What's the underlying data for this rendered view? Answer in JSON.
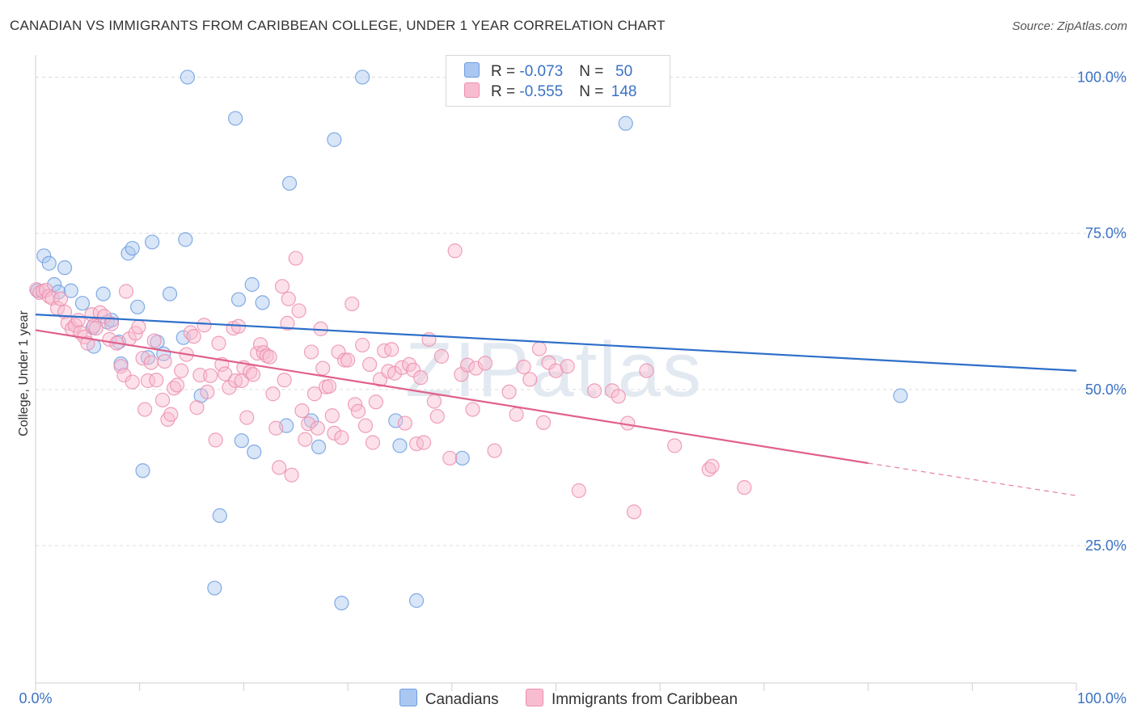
{
  "header": {
    "title": "CANADIAN VS IMMIGRANTS FROM CARIBBEAN COLLEGE, UNDER 1 YEAR CORRELATION CHART",
    "source": "Source: ZipAtlas.com"
  },
  "watermark": "ZIPatlas",
  "legend": {
    "rows": [
      {
        "r_label": "R = ",
        "r_value": "-0.073",
        "n_label": "N = ",
        "n_value": "50",
        "color": "#a9c7f0",
        "border": "#6f9ee0"
      },
      {
        "r_label": "R = ",
        "r_value": "-0.555",
        "n_label": "N = ",
        "n_value": "148",
        "color": "#f8bcd0",
        "border": "#ec8fae"
      }
    ]
  },
  "bottom_legend": [
    {
      "label": "Canadians",
      "color": "#a9c7f0",
      "border": "#6f9ee0"
    },
    {
      "label": "Immigrants from Caribbean",
      "color": "#f8bcd0",
      "border": "#ec8fae"
    }
  ],
  "chart_data": {
    "type": "scatter",
    "ylabel": "College, Under 1 year",
    "x_tick_labels": [
      "0.0%",
      "100.0%"
    ],
    "y_tick_labels": [
      "25.0%",
      "50.0%",
      "75.0%",
      "100.0%"
    ],
    "y_ticks": [
      25,
      50,
      75,
      100
    ],
    "xlim": [
      0,
      100
    ],
    "ylim": [
      3,
      102
    ],
    "grid": true,
    "series": [
      {
        "name": "Canadians",
        "color": "#6f9ee0",
        "fill": "#a9c7f0",
        "trend": {
          "x0": 0,
          "y0": 62.0,
          "x1": 100,
          "y1": 53.0,
          "color": "#2e6fc9"
        },
        "points": [
          [
            0.2,
            65.8
          ],
          [
            0.8,
            71.4
          ],
          [
            1.3,
            70.2
          ],
          [
            1.8,
            66.8
          ],
          [
            2.2,
            65.6
          ],
          [
            2.8,
            69.5
          ],
          [
            3.4,
            65.8
          ],
          [
            4.5,
            63.8
          ],
          [
            5.5,
            59.9
          ],
          [
            5.6,
            56.9
          ],
          [
            6.5,
            65.3
          ],
          [
            6.9,
            60.8
          ],
          [
            7.3,
            61.1
          ],
          [
            8.0,
            57.6
          ],
          [
            8.2,
            54.1
          ],
          [
            8.9,
            71.8
          ],
          [
            9.3,
            72.6
          ],
          [
            9.8,
            63.2
          ],
          [
            10.3,
            37.0
          ],
          [
            10.8,
            55.1
          ],
          [
            11.2,
            73.6
          ],
          [
            11.7,
            57.6
          ],
          [
            12.3,
            55.7
          ],
          [
            12.9,
            65.3
          ],
          [
            14.2,
            58.3
          ],
          [
            14.4,
            74.0
          ],
          [
            14.6,
            100.0
          ],
          [
            15.9,
            49.0
          ],
          [
            17.2,
            18.2
          ],
          [
            17.7,
            29.8
          ],
          [
            19.2,
            93.4
          ],
          [
            19.5,
            64.4
          ],
          [
            19.8,
            41.8
          ],
          [
            20.8,
            66.8
          ],
          [
            21.0,
            40.0
          ],
          [
            21.8,
            63.9
          ],
          [
            24.1,
            44.2
          ],
          [
            24.4,
            83.0
          ],
          [
            26.5,
            45.0
          ],
          [
            27.2,
            40.8
          ],
          [
            28.7,
            90.0
          ],
          [
            29.4,
            15.8
          ],
          [
            31.4,
            100.0
          ],
          [
            34.6,
            45.0
          ],
          [
            35.0,
            41.0
          ],
          [
            36.6,
            16.2
          ],
          [
            41.0,
            39.0
          ],
          [
            47.3,
            100.0
          ],
          [
            56.7,
            92.6
          ],
          [
            83.1,
            49.0
          ]
        ]
      },
      {
        "name": "Immigrants from Caribbean",
        "color": "#ec8fae",
        "fill": "#f8bcd0",
        "trend": {
          "x0": 0,
          "y0": 59.5,
          "x1": 80,
          "y1": 38.2,
          "color": "#e0608c"
        },
        "trend_dashed": {
          "x0": 80,
          "y0": 38.2,
          "x1": 100,
          "y1": 33.0
        },
        "points": [
          [
            0.1,
            66.0
          ],
          [
            0.4,
            65.5
          ],
          [
            0.7,
            65.7
          ],
          [
            1.0,
            65.9
          ],
          [
            1.3,
            64.9
          ],
          [
            1.6,
            64.6
          ],
          [
            2.1,
            63.0
          ],
          [
            2.4,
            64.5
          ],
          [
            2.8,
            62.4
          ],
          [
            3.1,
            60.6
          ],
          [
            3.5,
            59.7
          ],
          [
            3.8,
            60.3
          ],
          [
            4.1,
            61.1
          ],
          [
            4.3,
            59.1
          ],
          [
            4.7,
            58.4
          ],
          [
            5.0,
            57.4
          ],
          [
            5.4,
            62.0
          ],
          [
            5.6,
            60.2
          ],
          [
            5.8,
            59.8
          ],
          [
            6.2,
            62.3
          ],
          [
            6.6,
            61.7
          ],
          [
            7.1,
            58.0
          ],
          [
            7.3,
            60.5
          ],
          [
            7.8,
            57.4
          ],
          [
            8.2,
            53.7
          ],
          [
            8.5,
            52.3
          ],
          [
            8.7,
            65.7
          ],
          [
            9.0,
            58.1
          ],
          [
            9.3,
            51.2
          ],
          [
            9.6,
            59.0
          ],
          [
            9.9,
            60.0
          ],
          [
            10.3,
            55.0
          ],
          [
            10.5,
            46.8
          ],
          [
            10.8,
            51.4
          ],
          [
            11.1,
            54.3
          ],
          [
            11.4,
            57.8
          ],
          [
            11.6,
            51.5
          ],
          [
            12.2,
            48.3
          ],
          [
            12.4,
            54.5
          ],
          [
            12.7,
            45.2
          ],
          [
            13.0,
            46.0
          ],
          [
            13.3,
            50.2
          ],
          [
            13.6,
            50.7
          ],
          [
            14.0,
            53.0
          ],
          [
            14.5,
            55.6
          ],
          [
            14.9,
            59.1
          ],
          [
            15.2,
            58.5
          ],
          [
            15.5,
            47.1
          ],
          [
            15.8,
            52.3
          ],
          [
            16.2,
            60.3
          ],
          [
            16.5,
            49.6
          ],
          [
            16.8,
            52.2
          ],
          [
            17.3,
            41.9
          ],
          [
            17.6,
            57.4
          ],
          [
            17.9,
            54.0
          ],
          [
            18.2,
            52.5
          ],
          [
            18.6,
            50.3
          ],
          [
            19.0,
            59.8
          ],
          [
            19.2,
            51.4
          ],
          [
            19.5,
            60.1
          ],
          [
            19.8,
            51.4
          ],
          [
            20.0,
            53.5
          ],
          [
            20.3,
            45.5
          ],
          [
            20.6,
            52.8
          ],
          [
            20.9,
            52.4
          ],
          [
            21.3,
            55.8
          ],
          [
            21.6,
            57.2
          ],
          [
            21.9,
            55.9
          ],
          [
            22.2,
            55.4
          ],
          [
            22.5,
            55.2
          ],
          [
            22.8,
            49.3
          ],
          [
            23.1,
            43.8
          ],
          [
            23.4,
            37.5
          ],
          [
            23.7,
            66.5
          ],
          [
            23.9,
            51.5
          ],
          [
            24.2,
            60.6
          ],
          [
            24.3,
            64.5
          ],
          [
            24.6,
            36.3
          ],
          [
            25.0,
            71.0
          ],
          [
            25.3,
            62.6
          ],
          [
            25.6,
            46.6
          ],
          [
            25.9,
            42.0
          ],
          [
            26.2,
            44.5
          ],
          [
            26.5,
            56.0
          ],
          [
            26.8,
            49.3
          ],
          [
            27.1,
            43.8
          ],
          [
            27.4,
            59.7
          ],
          [
            27.6,
            53.4
          ],
          [
            27.9,
            50.4
          ],
          [
            28.2,
            50.5
          ],
          [
            28.5,
            45.8
          ],
          [
            28.7,
            43.0
          ],
          [
            29.1,
            56.0
          ],
          [
            29.4,
            42.3
          ],
          [
            29.7,
            54.7
          ],
          [
            30.0,
            54.7
          ],
          [
            30.4,
            63.7
          ],
          [
            30.7,
            47.6
          ],
          [
            31.0,
            46.5
          ],
          [
            31.4,
            57.1
          ],
          [
            31.7,
            44.2
          ],
          [
            32.1,
            54.0
          ],
          [
            32.4,
            41.5
          ],
          [
            32.7,
            48.0
          ],
          [
            33.1,
            51.6
          ],
          [
            33.5,
            56.2
          ],
          [
            33.9,
            52.9
          ],
          [
            34.2,
            56.4
          ],
          [
            34.5,
            52.6
          ],
          [
            35.2,
            53.5
          ],
          [
            35.5,
            44.6
          ],
          [
            35.9,
            54.0
          ],
          [
            36.3,
            53.1
          ],
          [
            36.6,
            41.3
          ],
          [
            37.0,
            51.9
          ],
          [
            37.3,
            41.5
          ],
          [
            37.8,
            58.0
          ],
          [
            38.3,
            48.1
          ],
          [
            38.6,
            45.7
          ],
          [
            39.0,
            55.3
          ],
          [
            39.8,
            39.0
          ],
          [
            40.3,
            72.2
          ],
          [
            40.9,
            52.4
          ],
          [
            41.5,
            53.9
          ],
          [
            42.0,
            46.8
          ],
          [
            42.3,
            53.4
          ],
          [
            43.2,
            54.2
          ],
          [
            44.1,
            40.2
          ],
          [
            45.5,
            49.6
          ],
          [
            46.2,
            46.0
          ],
          [
            46.9,
            53.6
          ],
          [
            47.5,
            51.6
          ],
          [
            48.4,
            56.5
          ],
          [
            48.8,
            44.7
          ],
          [
            49.3,
            54.3
          ],
          [
            50.0,
            53.0
          ],
          [
            51.1,
            53.7
          ],
          [
            52.2,
            33.8
          ],
          [
            53.7,
            49.8
          ],
          [
            55.4,
            49.8
          ],
          [
            56.0,
            48.9
          ],
          [
            56.9,
            44.6
          ],
          [
            57.5,
            30.4
          ],
          [
            58.7,
            53.0
          ],
          [
            61.4,
            41.0
          ],
          [
            64.7,
            37.2
          ],
          [
            65.0,
            37.7
          ],
          [
            68.1,
            34.3
          ]
        ]
      }
    ]
  }
}
